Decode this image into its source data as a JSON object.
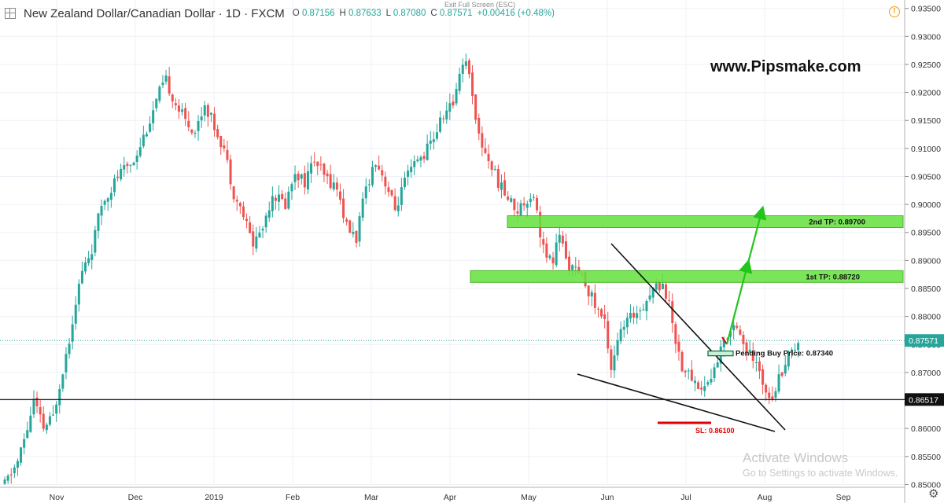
{
  "header": {
    "symbol": "New Zealand Dollar/Canadian Dollar · 1D · FXCM",
    "o_label": "O",
    "o": "0.87156",
    "h_label": "H",
    "h": "0.87633",
    "l_label": "L",
    "l": "0.87080",
    "c_label": "C",
    "c": "0.87571",
    "change": "+0.00416 (+0.48%)",
    "exit_fullscreen": "Exit Full Screen (ESC)"
  },
  "watermark": {
    "line1": "Activate Windows",
    "line2": "Go to Settings to activate Windows."
  },
  "site": "www.Pipsmake.com",
  "icons": {
    "top_left": "chart-layout-icon",
    "top_right": "alert-icon",
    "bottom_right": "settings-icon"
  },
  "colors": {
    "up": "#26a69a",
    "down": "#ef5350",
    "zone": "#64e13c",
    "arrow": "#22c51a",
    "sl": "#e00000"
  },
  "chart_data": {
    "type": "candlestick",
    "title": "New Zealand Dollar/Canadian Dollar · 1D · FXCM",
    "xlabel": "",
    "ylabel": "",
    "x_ticks": [
      "Nov",
      "Dec",
      "2019",
      "Feb",
      "Mar",
      "Apr",
      "May",
      "Jun",
      "Jul",
      "Aug",
      "Sep"
    ],
    "y_ticks": [
      "0.93500",
      "0.93000",
      "0.92500",
      "0.92000",
      "0.91500",
      "0.91000",
      "0.90500",
      "0.90000",
      "0.89500",
      "0.89000",
      "0.88500",
      "0.88000",
      "0.87500",
      "0.87000",
      "0.86500",
      "0.86000",
      "0.85500",
      "0.85000"
    ],
    "ylim": [
      0.8495,
      0.9365
    ],
    "price_path": [
      [
        0,
        0.85
      ],
      [
        4,
        0.854
      ],
      [
        7,
        0.86
      ],
      [
        9,
        0.865
      ],
      [
        12,
        0.86
      ],
      [
        15,
        0.862
      ],
      [
        17,
        0.868
      ],
      [
        20,
        0.876
      ],
      [
        22,
        0.883
      ],
      [
        24,
        0.888
      ],
      [
        27,
        0.892
      ],
      [
        30,
        0.9
      ],
      [
        35,
        0.905
      ],
      [
        40,
        0.908
      ],
      [
        45,
        0.915
      ],
      [
        48,
        0.92
      ],
      [
        50,
        0.922
      ],
      [
        53,
        0.918
      ],
      [
        56,
        0.915
      ],
      [
        59,
        0.913
      ],
      [
        62,
        0.918
      ],
      [
        65,
        0.914
      ],
      [
        68,
        0.91
      ],
      [
        71,
        0.902
      ],
      [
        74,
        0.898
      ],
      [
        77,
        0.893
      ],
      [
        80,
        0.896
      ],
      [
        83,
        0.902
      ],
      [
        87,
        0.9
      ],
      [
        90,
        0.906
      ],
      [
        93,
        0.904
      ],
      [
        96,
        0.908
      ],
      [
        99,
        0.905
      ],
      [
        103,
        0.903
      ],
      [
        106,
        0.896
      ],
      [
        109,
        0.894
      ],
      [
        112,
        0.903
      ],
      [
        115,
        0.908
      ],
      [
        118,
        0.904
      ],
      [
        121,
        0.899
      ],
      [
        124,
        0.904
      ],
      [
        127,
        0.907
      ],
      [
        130,
        0.909
      ],
      [
        133,
        0.912
      ],
      [
        136,
        0.916
      ],
      [
        139,
        0.918
      ],
      [
        141,
        0.924
      ],
      [
        143,
        0.926
      ],
      [
        145,
        0.92
      ],
      [
        147,
        0.912
      ],
      [
        150,
        0.908
      ],
      [
        153,
        0.904
      ],
      [
        156,
        0.901
      ],
      [
        159,
        0.899
      ],
      [
        162,
        0.901
      ],
      [
        164,
        0.902
      ],
      [
        166,
        0.895
      ],
      [
        168,
        0.89
      ],
      [
        170,
        0.89
      ],
      [
        172,
        0.895
      ],
      [
        174,
        0.89
      ],
      [
        177,
        0.888
      ],
      [
        180,
        0.886
      ],
      [
        183,
        0.882
      ],
      [
        186,
        0.879
      ],
      [
        188,
        0.871
      ],
      [
        190,
        0.876
      ],
      [
        193,
        0.879
      ],
      [
        196,
        0.881
      ],
      [
        199,
        0.883
      ],
      [
        201,
        0.885
      ],
      [
        204,
        0.886
      ],
      [
        206,
        0.882
      ],
      [
        208,
        0.876
      ],
      [
        210,
        0.871
      ],
      [
        213,
        0.869
      ],
      [
        216,
        0.867
      ],
      [
        219,
        0.869
      ],
      [
        222,
        0.874
      ],
      [
        225,
        0.878
      ],
      [
        227,
        0.879
      ],
      [
        229,
        0.875
      ],
      [
        232,
        0.872
      ],
      [
        234,
        0.87
      ],
      [
        236,
        0.867
      ],
      [
        238,
        0.866
      ],
      [
        240,
        0.869
      ],
      [
        242,
        0.872
      ],
      [
        244,
        0.874
      ],
      [
        246,
        0.8757
      ]
    ],
    "annotations": [
      {
        "label": "2nd TP: 0.89700",
        "y": 0.897,
        "type": "zone"
      },
      {
        "label": "1st TP: 0.88720",
        "y": 0.8872,
        "type": "zone"
      },
      {
        "label": "Pending Buy Price: 0.87340",
        "y": 0.8734,
        "type": "entry"
      },
      {
        "label": "SL: 0.86100",
        "y": 0.861,
        "type": "stop"
      }
    ],
    "last_price_label": "0.87571",
    "last_price": 0.87571,
    "hline_label": "0.86517",
    "hline": 0.86517
  }
}
